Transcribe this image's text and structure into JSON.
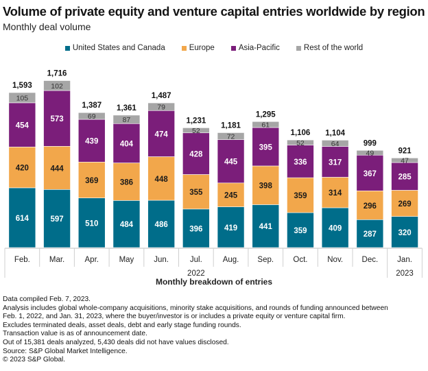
{
  "chart_data": {
    "type": "bar",
    "stacked": true,
    "title": "Volume of private equity and venture capital entries worldwide by region",
    "subtitle": "Monthly deal volume",
    "xlabel": "Monthly breakdown of entries",
    "ylabel": "",
    "categories": [
      "Feb.",
      "Mar.",
      "Apr.",
      "May",
      "Jun.",
      "Jul.",
      "Aug.",
      "Sep.",
      "Oct.",
      "Nov.",
      "Dec.",
      "Jan."
    ],
    "year_groups": [
      {
        "label": "2022",
        "span": 11
      },
      {
        "label": "2023",
        "span": 1
      }
    ],
    "series": [
      {
        "name": "United States and Canada",
        "color": "#006d8a",
        "label_color": "#ffffff",
        "values": [
          614,
          597,
          510,
          484,
          486,
          396,
          419,
          441,
          359,
          409,
          287,
          320
        ]
      },
      {
        "name": "Europe",
        "color": "#f2a74b",
        "label_color": "#1a1a1a",
        "values": [
          420,
          444,
          369,
          386,
          448,
          355,
          245,
          398,
          359,
          314,
          296,
          269
        ]
      },
      {
        "name": "Asia-Pacific",
        "color": "#7b1e7a",
        "label_color": "#ffffff",
        "values": [
          454,
          573,
          439,
          404,
          474,
          428,
          445,
          395,
          336,
          317,
          367,
          285
        ]
      },
      {
        "name": "Rest of the world",
        "color": "#a6a6a6",
        "label_color": "#333333",
        "values": [
          105,
          102,
          69,
          87,
          79,
          52,
          72,
          61,
          52,
          64,
          49,
          47
        ]
      }
    ],
    "totals": [
      "1,593",
      "1,716",
      "1,387",
      "1,361",
      "1,487",
      "1,231",
      "1,181",
      "1,295",
      "1,106",
      "1,104",
      "999",
      "921"
    ],
    "ylim": [
      0,
      1800
    ],
    "grid": false,
    "legend_position": "top-center"
  },
  "notes": [
    "Data compiled Feb. 7, 2023.",
    "Analysis includes global whole-company acquisitions, minority stake acquisitions, and rounds of funding announced between",
    "Feb. 1, 2022, and Jan. 31, 2023, where the buyer/investor is or includes a private equity or venture capital firm.",
    "Excludes terminated deals, asset deals, debt and early stage funding rounds.",
    "Transaction value is as of announcement date.",
    "Out of 15,381 deals analyzed, 5,430 deals did not have values disclosed.",
    "Source: S&P Global Market Intelligence.",
    "© 2023 S&P Global."
  ]
}
